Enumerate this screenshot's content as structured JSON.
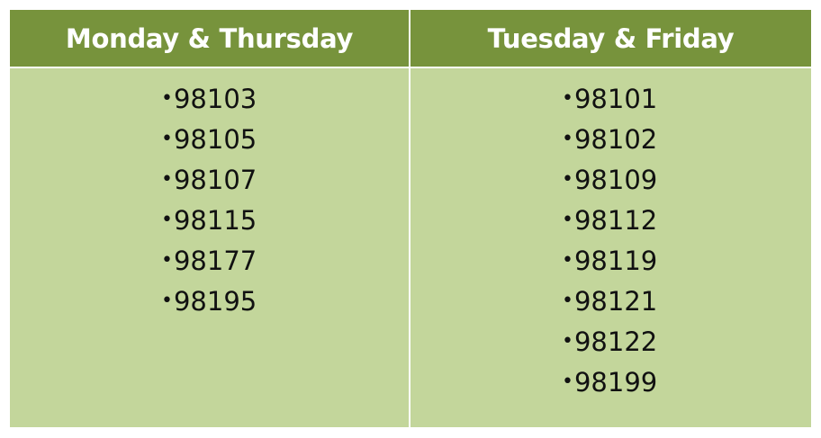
{
  "table": {
    "columns": [
      {
        "header": "Monday & Thursday",
        "bullet": "•",
        "zips": [
          "98103",
          "98105",
          "98107",
          "98115",
          "98177",
          "98195"
        ]
      },
      {
        "header": "Tuesday & Friday",
        "bullet": "•",
        "zips": [
          "98101",
          "98102",
          "98109",
          "98112",
          "98119",
          "98121",
          "98122",
          "98199"
        ]
      }
    ]
  },
  "colors": {
    "header_background": "#77933c",
    "body_background": "#c3d69b",
    "header_text": "#ffffff",
    "body_text": "#111111"
  }
}
